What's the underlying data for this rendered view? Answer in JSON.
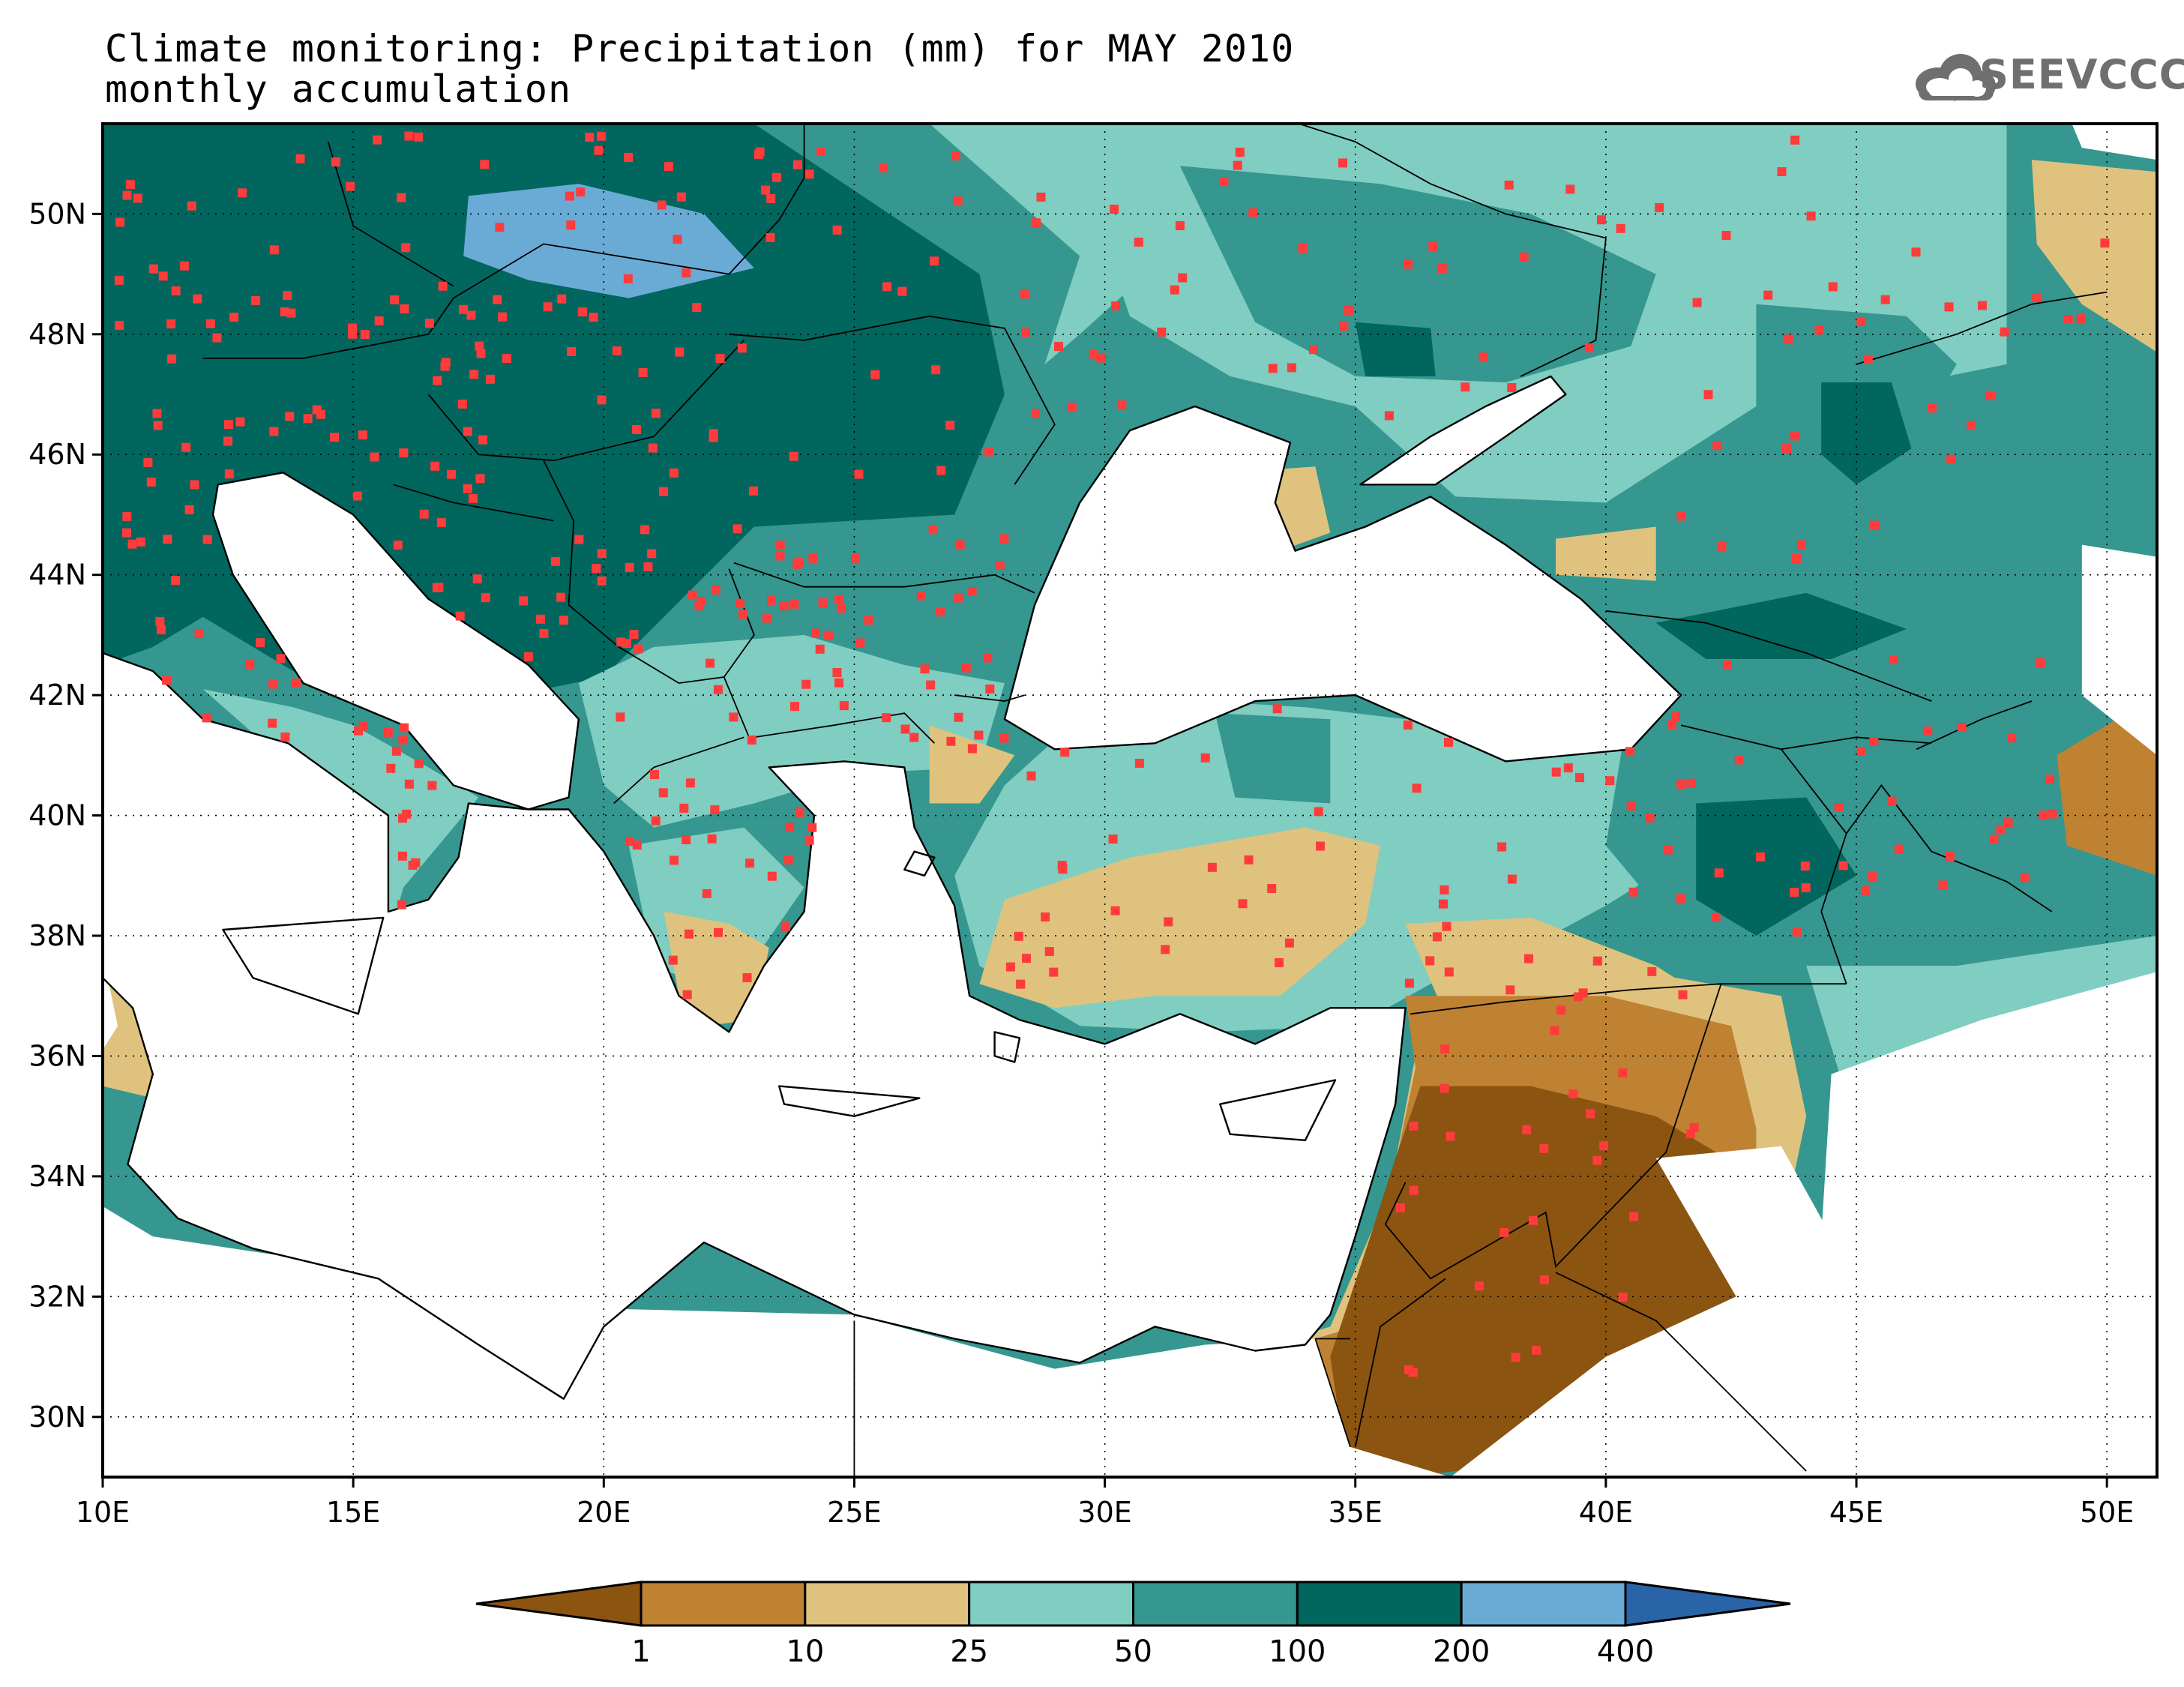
{
  "title": {
    "line1": "Climate monitoring: Precipitation (mm) for MAY 2010",
    "line2": "monthly accumulation"
  },
  "logo": {
    "text": "SEEVCCC",
    "icon": "cloud-logo-icon",
    "color": "#6f6f6f"
  },
  "map": {
    "lon_range": [
      10,
      51
    ],
    "lat_range": [
      29,
      51.5
    ],
    "lon_ticks": [
      "10E",
      "15E",
      "20E",
      "25E",
      "30E",
      "35E",
      "40E",
      "45E",
      "50E"
    ],
    "lat_ticks": [
      "30N",
      "32N",
      "34N",
      "36N",
      "38N",
      "40N",
      "42N",
      "44N",
      "46N",
      "48N",
      "50N"
    ],
    "grid": "dotted",
    "station_color": "#ff3b3b",
    "sea_color": "#ffffff"
  },
  "colorbar": {
    "bounds": [
      "1",
      "10",
      "25",
      "50",
      "100",
      "200",
      "400"
    ],
    "colors": [
      "#8b5410",
      "#bf8232",
      "#dfc27d",
      "#80cdc1",
      "#35978f",
      "#01665e",
      "#6aabd6",
      "#2a64a8"
    ],
    "extend": "both"
  }
}
